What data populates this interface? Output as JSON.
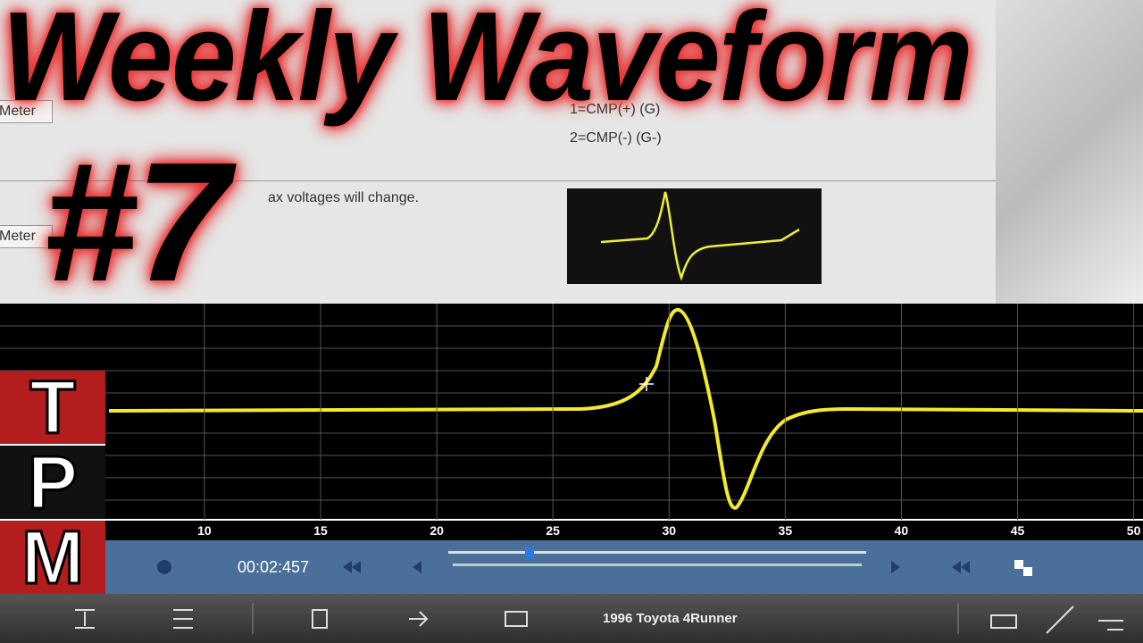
{
  "overlay": {
    "title": "Weekly Waveform",
    "episode": "#7"
  },
  "logo": {
    "letters": [
      "T",
      "P",
      "M"
    ]
  },
  "info_panel": {
    "lines": [
      "1=CMP(+) (G)",
      "2=CMP(-) (G-)"
    ],
    "note": "ax voltages will change.",
    "buttons": [
      "Meter",
      "Meter"
    ]
  },
  "waveform_screen": {
    "xlim": [
      1.2,
      50.4
    ],
    "xticks": [
      10,
      15,
      20,
      25,
      30,
      35,
      40,
      45,
      50
    ]
  },
  "player": {
    "time": "00:02:457"
  },
  "toolbar": {
    "vehicle": "1996 Toyota 4Runner"
  }
}
